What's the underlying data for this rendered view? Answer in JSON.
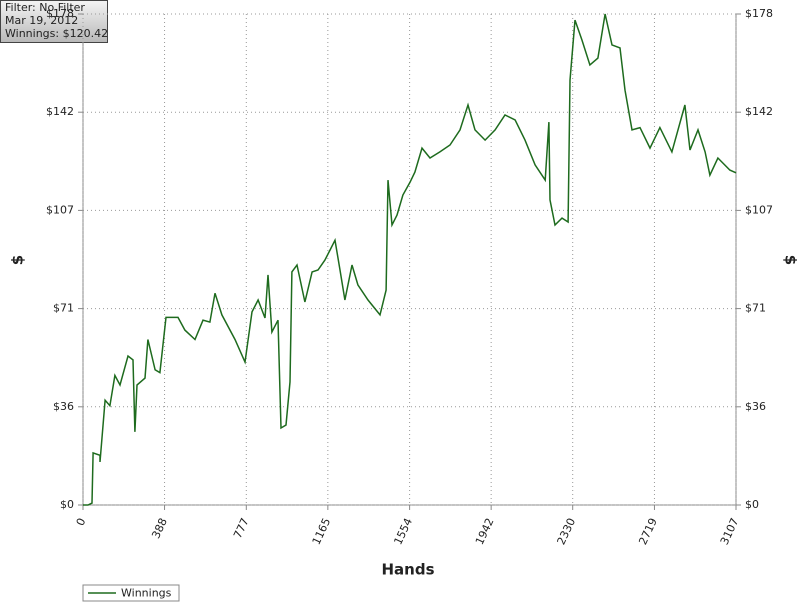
{
  "tooltip": [
    "Filter: No Filter",
    "Mar 19, 2012",
    "Winnings: $120.42"
  ],
  "chart_data": {
    "type": "line",
    "x_label": "Hands",
    "y_label": "$",
    "xlim": [
      0,
      3107
    ],
    "xticks": [
      0,
      388,
      777,
      1165,
      1554,
      1942,
      2330,
      2719,
      3107
    ],
    "ylim": [
      0,
      178
    ],
    "yticks": [
      {
        "value": 0,
        "label": "$0"
      },
      {
        "value": 35.6,
        "label": "$36"
      },
      {
        "value": 71.2,
        "label": "$71"
      },
      {
        "value": 106.8,
        "label": "$107"
      },
      {
        "value": 142.4,
        "label": "$142"
      },
      {
        "value": 178,
        "label": "$178"
      }
    ],
    "grid": true,
    "x": [
      0,
      24,
      43,
      48,
      81,
      81,
      105,
      128,
      152,
      176,
      214,
      238,
      247,
      257,
      295,
      309,
      343,
      366,
      395,
      452,
      485,
      533,
      571,
      604,
      628,
      661,
      723,
      771,
      804,
      833,
      866,
      880,
      899,
      928,
      942,
      966,
      985,
      994,
      1018,
      1056,
      1090,
      1118,
      1151,
      1175,
      1199,
      1223,
      1246,
      1280,
      1308,
      1356,
      1413,
      1442,
      1451,
      1470,
      1494,
      1522,
      1556,
      1579,
      1613,
      1651,
      1698,
      1746,
      1794,
      1832,
      1865,
      1913,
      1961,
      2008,
      2056,
      2103,
      2151,
      2199,
      2217,
      2222,
      2246,
      2279,
      2308,
      2317,
      2341,
      2374,
      2412,
      2450,
      2484,
      2517,
      2555,
      2579,
      2612,
      2650,
      2698,
      2745,
      2802,
      2864,
      2888,
      2926,
      2960,
      2983,
      3021,
      3078,
      3107
    ],
    "series": [
      {
        "name": "Winnings",
        "color": "#1e6b1e",
        "values": [
          0,
          0,
          0.7,
          18.9,
          18,
          15.6,
          38,
          36,
          47,
          43.5,
          54,
          52.6,
          26.5,
          43.5,
          46,
          60,
          49,
          48,
          68,
          68,
          63.4,
          60,
          67,
          66.3,
          76.8,
          68.9,
          60,
          51.8,
          70,
          74.3,
          67.8,
          83.4,
          62.7,
          67,
          27.9,
          29,
          44.6,
          84.5,
          87,
          73.6,
          84.5,
          85.2,
          88.8,
          92.4,
          96,
          85.2,
          74.3,
          87,
          79.8,
          74.3,
          68.9,
          77.9,
          117.8,
          101.5,
          105.1,
          112.4,
          117,
          120.7,
          129.4,
          125.8,
          128,
          130.5,
          136,
          145,
          136,
          132.3,
          136,
          141.4,
          139.6,
          132.3,
          123.3,
          117.8,
          138.8,
          110.6,
          101.5,
          104,
          102.6,
          154,
          175.8,
          168.6,
          159.5,
          162,
          178,
          166.8,
          165.7,
          150.4,
          136,
          136.8,
          129.4,
          136.8,
          128,
          145,
          128.7,
          136,
          128,
          119.6,
          125.8,
          121.4,
          120.42
        ]
      }
    ]
  }
}
